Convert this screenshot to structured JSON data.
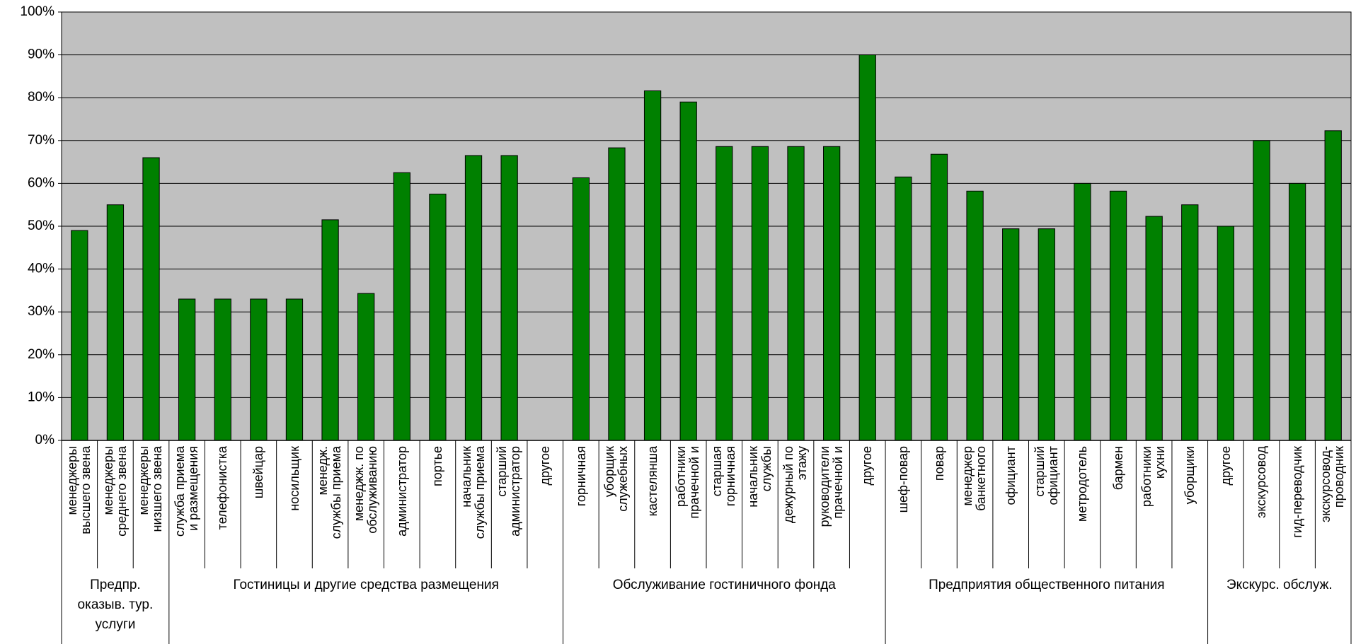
{
  "chart_data": {
    "type": "bar",
    "color": "#008000",
    "background": "#c0c0c0",
    "grid": true,
    "ylim": [
      0,
      100
    ],
    "yticks": [
      {
        "value": 0,
        "label": "0%"
      },
      {
        "value": 10,
        "label": "10%"
      },
      {
        "value": 20,
        "label": "20%"
      },
      {
        "value": 30,
        "label": "30%"
      },
      {
        "value": 40,
        "label": "40%"
      },
      {
        "value": 50,
        "label": "50%"
      },
      {
        "value": 60,
        "label": "60%"
      },
      {
        "value": 70,
        "label": "70%"
      },
      {
        "value": 80,
        "label": "80%"
      },
      {
        "value": 90,
        "label": "90%"
      },
      {
        "value": 100,
        "label": "100%"
      }
    ],
    "groups": [
      {
        "label": "Предпр.\nоказыв. тур.\nуслуги",
        "categories": [
          "менеджеры\nвысшего звена",
          "менеджеры\nсреднего звена",
          "менеджеры\nнизшего звена"
        ],
        "values": [
          49,
          55,
          66
        ]
      },
      {
        "label": "Гостиницы и другие средства размещения",
        "categories": [
          "служба приема\nи размещения",
          "телефонистка",
          "швейцар",
          "носильщик",
          "менедж.\nслужбы приема",
          "менеджж. по\nобслуживанию",
          "администратор",
          "портье",
          "начальник\nслужбы приема",
          "старший\nадминистратор",
          "другое"
        ],
        "values": [
          33,
          33,
          33,
          33,
          51.5,
          34.3,
          62.5,
          57.5,
          66.5,
          66.5,
          null
        ]
      },
      {
        "label": "Обслуживание гостиничного фонда",
        "categories": [
          "горничная",
          "уборщик\nслужебных",
          "кастелянша",
          "работники\nпрачечной и",
          "старшая\nгорничная",
          "начальник\nслужбы",
          "дежурный по\nэтажу",
          "руководители\nпрачечной и",
          "другое"
        ],
        "values": [
          61.3,
          68.3,
          81.6,
          79,
          68.6,
          68.6,
          68.6,
          68.6,
          90
        ]
      },
      {
        "label": "Предприятия общественного питания",
        "categories": [
          "шеф-повар",
          "повар",
          "менеджер\nбанкетного",
          "официант",
          "старший\nофициант",
          "метродотель",
          "бармен",
          "работники\nкухни",
          "уборщики"
        ],
        "values": [
          61.5,
          66.8,
          58.2,
          49.4,
          49.4,
          60,
          58.2,
          52.3,
          55
        ]
      },
      {
        "label": "Экскурс. обслуж.",
        "categories": [
          "другое",
          "экскурсовод",
          "гид-переводчик",
          "экскурсовод-\nпроводник"
        ],
        "values": [
          50,
          70,
          60,
          72.3
        ]
      }
    ]
  }
}
